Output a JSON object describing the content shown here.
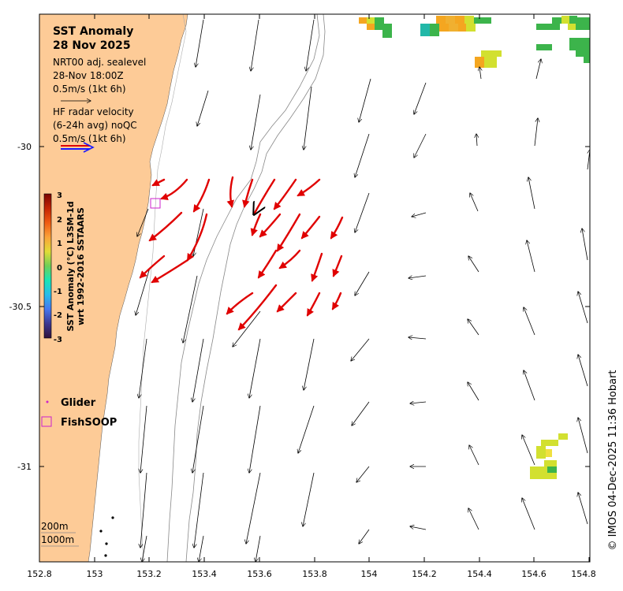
{
  "title": {
    "line1": "SST Anomaly",
    "line2": "28 Nov 2025"
  },
  "legend": {
    "model_line1": "NRT00 adj. sealevel",
    "model_line2": "28-Nov 18:00Z",
    "model_scale": "0.5m/s (1kt 6h)",
    "radar_line1": "HF radar velocity",
    "radar_line2": "(6-24h avg) noQC",
    "radar_scale": "0.5m/s (1kt 6h)",
    "glider": "Glider",
    "fishsoop": "FishSOOP"
  },
  "colorbar": {
    "ticks": [
      "3",
      "2",
      "1",
      "0",
      "-1",
      "-2",
      "-3"
    ],
    "label1": "SST Anomaly (°C) L3SM-1d",
    "label2": "wrt 1992-2016 SSTAARS"
  },
  "axes": {
    "x_ticks": [
      "152.8",
      "153",
      "153.2",
      "153.4",
      "153.6",
      "153.8",
      "154",
      "154.2",
      "154.4",
      "154.6",
      "154.8"
    ],
    "y_ticks": [
      "-30",
      "-30.5",
      "-31"
    ]
  },
  "isobaths": {
    "shallow": "200m",
    "deep": "1000m"
  },
  "credit": "© IMOS 04-Dec-2025 11:36 Hobart"
}
